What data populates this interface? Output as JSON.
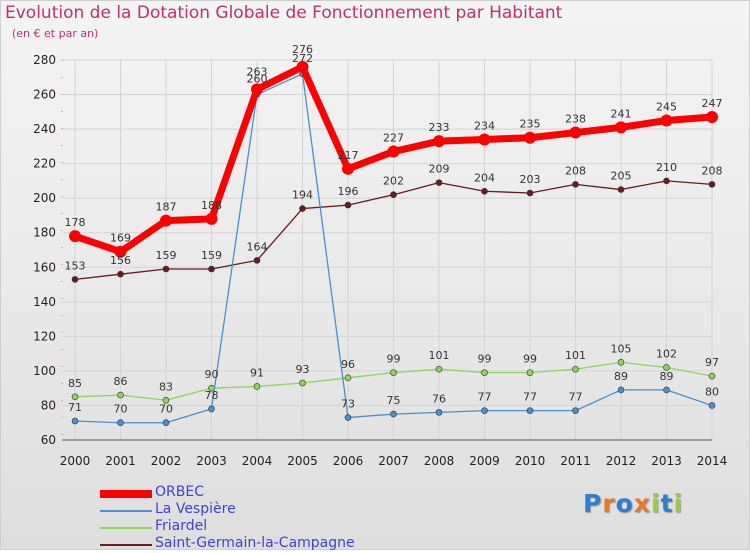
{
  "title": "Evolution de la Dotation Globale de Fonctionnement par Habitant",
  "subtitle": "(en € et par an)",
  "logo": {
    "text": "Proxiti",
    "colors": [
      "#2f7fd0",
      "#e8792a",
      "#2f7fd0",
      "#e8792a",
      "#9ccd3a",
      "#2f7fd0",
      "#9ccd3a"
    ]
  },
  "chart_data": {
    "type": "line",
    "title": "Evolution de la Dotation Globale de Fonctionnement par Habitant",
    "subtitle": "(en € et par an)",
    "xlabel": "",
    "ylabel": "",
    "x": [
      "2000",
      "2001",
      "2002",
      "2003",
      "2004",
      "2005",
      "2006",
      "2007",
      "2008",
      "2009",
      "2010",
      "2011",
      "2012",
      "2013",
      "2014"
    ],
    "ylim": [
      60,
      280
    ],
    "yticks": [
      60,
      80,
      100,
      120,
      140,
      160,
      180,
      200,
      220,
      240,
      260,
      280
    ],
    "grid": true,
    "legend_position": "bottom-left",
    "series": [
      {
        "name": "ORBEC",
        "color": "#ff0000",
        "values": [
          178,
          169,
          187,
          188,
          263,
          276,
          217,
          227,
          233,
          234,
          235,
          238,
          241,
          245,
          247
        ]
      },
      {
        "name": "La Vespière",
        "color": "#4b8fcf",
        "values": [
          71,
          70,
          70,
          78,
          260,
          272,
          73,
          75,
          76,
          77,
          77,
          77,
          89,
          89,
          80
        ]
      },
      {
        "name": "Friardel",
        "color": "#8fd45a",
        "values": [
          85,
          86,
          83,
          90,
          91,
          93,
          96,
          99,
          101,
          99,
          99,
          101,
          105,
          102,
          97
        ]
      },
      {
        "name": "Saint-Germain-la-Campagne",
        "color": "#6a1a20",
        "values": [
          153,
          156,
          159,
          159,
          164,
          194,
          196,
          202,
          209,
          204,
          203,
          208,
          205,
          210,
          208
        ]
      }
    ]
  }
}
